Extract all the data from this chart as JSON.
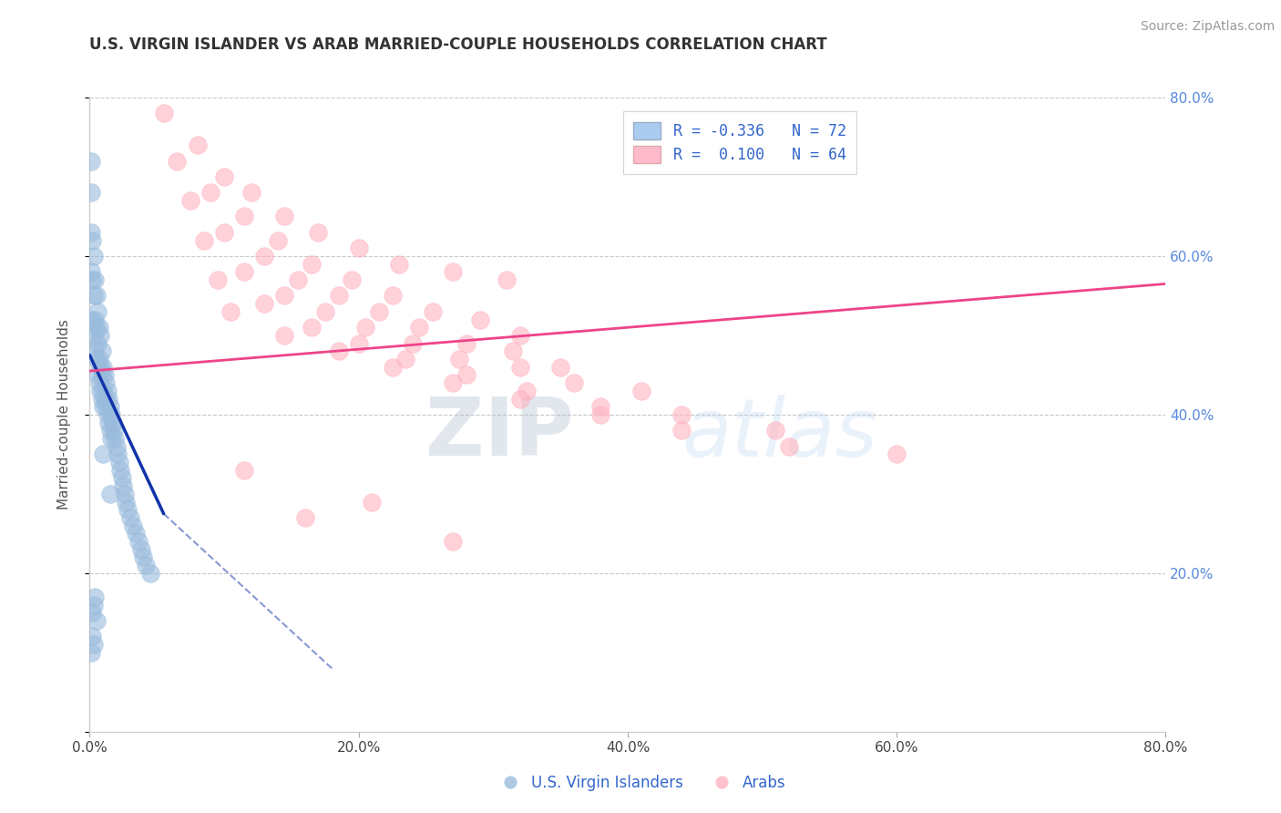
{
  "title": "U.S. VIRGIN ISLANDER VS ARAB MARRIED-COUPLE HOUSEHOLDS CORRELATION CHART",
  "source_text": "Source: ZipAtlas.com",
  "ylabel": "Married-couple Households",
  "watermark_zip": "ZIP",
  "watermark_atlas": "atlas",
  "legend_r1": "R = -0.336",
  "legend_n1": "N = 72",
  "legend_r2": "R =  0.100",
  "legend_n2": "N = 64",
  "blue_color": "#99BBDD",
  "pink_color": "#FFB3C1",
  "blue_line_color": "#1133AA",
  "pink_line_color": "#EE4488",
  "blue_legend_color": "#AACCEE",
  "pink_legend_color": "#FFBBCC",
  "xlim": [
    0.0,
    0.8
  ],
  "ylim": [
    0.0,
    0.8
  ],
  "xticks": [
    0.0,
    0.2,
    0.4,
    0.6,
    0.8
  ],
  "yticks": [
    0.0,
    0.2,
    0.4,
    0.6,
    0.8
  ],
  "xtick_labels": [
    "0.0%",
    "20.0%",
    "40.0%",
    "60.0%",
    "80.0%"
  ],
  "right_ytick_labels": [
    "",
    "20.0%",
    "40.0%",
    "60.0%",
    "80.0%"
  ],
  "blue_scatter_x": [
    0.001,
    0.001,
    0.001,
    0.002,
    0.002,
    0.002,
    0.003,
    0.003,
    0.003,
    0.004,
    0.004,
    0.004,
    0.005,
    0.005,
    0.005,
    0.006,
    0.006,
    0.006,
    0.007,
    0.007,
    0.007,
    0.008,
    0.008,
    0.008,
    0.009,
    0.009,
    0.009,
    0.01,
    0.01,
    0.01,
    0.011,
    0.011,
    0.012,
    0.012,
    0.013,
    0.013,
    0.014,
    0.014,
    0.015,
    0.015,
    0.016,
    0.016,
    0.017,
    0.018,
    0.019,
    0.02,
    0.021,
    0.022,
    0.023,
    0.024,
    0.025,
    0.026,
    0.027,
    0.028,
    0.03,
    0.032,
    0.034,
    0.036,
    0.038,
    0.04,
    0.042,
    0.045,
    0.001,
    0.002,
    0.003,
    0.004,
    0.005,
    0.001,
    0.002,
    0.003,
    0.01,
    0.015
  ],
  "blue_scatter_y": [
    0.68,
    0.63,
    0.58,
    0.62,
    0.57,
    0.52,
    0.6,
    0.55,
    0.5,
    0.57,
    0.52,
    0.48,
    0.55,
    0.51,
    0.47,
    0.53,
    0.49,
    0.45,
    0.51,
    0.47,
    0.44,
    0.5,
    0.46,
    0.43,
    0.48,
    0.45,
    0.42,
    0.46,
    0.43,
    0.41,
    0.45,
    0.42,
    0.44,
    0.41,
    0.43,
    0.4,
    0.42,
    0.39,
    0.41,
    0.38,
    0.4,
    0.37,
    0.39,
    0.38,
    0.37,
    0.36,
    0.35,
    0.34,
    0.33,
    0.32,
    0.31,
    0.3,
    0.29,
    0.28,
    0.27,
    0.26,
    0.25,
    0.24,
    0.23,
    0.22,
    0.21,
    0.2,
    0.72,
    0.15,
    0.16,
    0.17,
    0.14,
    0.1,
    0.12,
    0.11,
    0.35,
    0.3
  ],
  "pink_scatter_x": [
    0.055,
    0.08,
    0.1,
    0.12,
    0.145,
    0.17,
    0.2,
    0.23,
    0.27,
    0.31,
    0.065,
    0.09,
    0.115,
    0.14,
    0.165,
    0.195,
    0.225,
    0.255,
    0.29,
    0.32,
    0.075,
    0.1,
    0.13,
    0.155,
    0.185,
    0.215,
    0.245,
    0.28,
    0.315,
    0.35,
    0.085,
    0.115,
    0.145,
    0.175,
    0.205,
    0.24,
    0.275,
    0.32,
    0.36,
    0.41,
    0.095,
    0.13,
    0.165,
    0.2,
    0.235,
    0.28,
    0.325,
    0.38,
    0.44,
    0.51,
    0.105,
    0.145,
    0.185,
    0.225,
    0.27,
    0.32,
    0.38,
    0.44,
    0.52,
    0.6,
    0.115,
    0.16,
    0.21,
    0.27
  ],
  "pink_scatter_y": [
    0.78,
    0.74,
    0.7,
    0.68,
    0.65,
    0.63,
    0.61,
    0.59,
    0.58,
    0.57,
    0.72,
    0.68,
    0.65,
    0.62,
    0.59,
    0.57,
    0.55,
    0.53,
    0.52,
    0.5,
    0.67,
    0.63,
    0.6,
    0.57,
    0.55,
    0.53,
    0.51,
    0.49,
    0.48,
    0.46,
    0.62,
    0.58,
    0.55,
    0.53,
    0.51,
    0.49,
    0.47,
    0.46,
    0.44,
    0.43,
    0.57,
    0.54,
    0.51,
    0.49,
    0.47,
    0.45,
    0.43,
    0.41,
    0.4,
    0.38,
    0.53,
    0.5,
    0.48,
    0.46,
    0.44,
    0.42,
    0.4,
    0.38,
    0.36,
    0.35,
    0.33,
    0.27,
    0.29,
    0.24
  ],
  "blue_solid_line_x": [
    0.0,
    0.055
  ],
  "blue_solid_line_y": [
    0.475,
    0.275
  ],
  "blue_dashed_line_x": [
    0.055,
    0.18
  ],
  "blue_dashed_line_y": [
    0.275,
    0.08
  ],
  "pink_line_x": [
    0.0,
    0.8
  ],
  "pink_line_y": [
    0.455,
    0.565
  ]
}
